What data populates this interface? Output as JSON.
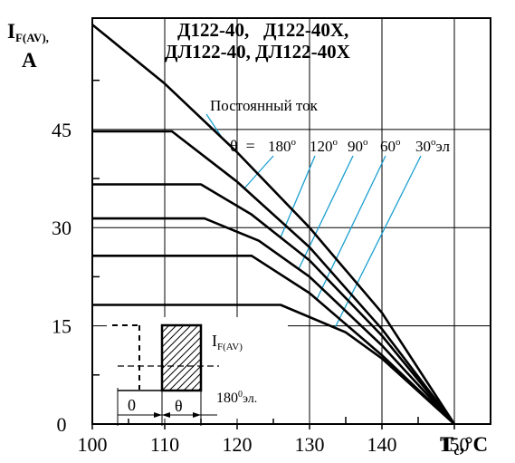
{
  "chart_data": {
    "type": "line",
    "title_lines": [
      "Д122-40,   Д122-40Х,",
      "ДЛ122-40, ДЛ122-40Х"
    ],
    "ylabel": {
      "main": "I",
      "sub": "F(AV),",
      "unit": "A"
    },
    "xlabel": {
      "main": "T",
      "sub": "c",
      "unit": ",°C"
    },
    "xlim": [
      100,
      155
    ],
    "ylim": [
      0,
      62
    ],
    "x_ticks": [
      "100",
      "110",
      "120",
      "130",
      "140",
      "150"
    ],
    "y_ticks": [
      "0",
      "15",
      "30",
      "45"
    ],
    "grid": true,
    "series": [
      {
        "name": "Постоянный ток",
        "points": [
          [
            100,
            61
          ],
          [
            110,
            52
          ],
          [
            120,
            41.5
          ],
          [
            130,
            30
          ],
          [
            140,
            17
          ],
          [
            150,
            0
          ]
        ]
      },
      {
        "name": "180",
        "points": [
          [
            100,
            44.7
          ],
          [
            111,
            44.7
          ],
          [
            120,
            37
          ],
          [
            130,
            27
          ],
          [
            140,
            14.5
          ],
          [
            150,
            0
          ]
        ]
      },
      {
        "name": "120",
        "points": [
          [
            100,
            36.6
          ],
          [
            115,
            36.6
          ],
          [
            122,
            32
          ],
          [
            130,
            25
          ],
          [
            140,
            13.5
          ],
          [
            150,
            0
          ]
        ]
      },
      {
        "name": "90",
        "points": [
          [
            100,
            31.4
          ],
          [
            115.5,
            31.4
          ],
          [
            123,
            28
          ],
          [
            130,
            22.5
          ],
          [
            140,
            12
          ],
          [
            150,
            0
          ]
        ]
      },
      {
        "name": "60",
        "points": [
          [
            100,
            25.7
          ],
          [
            122,
            25.7
          ],
          [
            130,
            20
          ],
          [
            140,
            10.5
          ],
          [
            150,
            0
          ]
        ]
      },
      {
        "name": "30",
        "points": [
          [
            100,
            18.2
          ],
          [
            126,
            18.2
          ],
          [
            135,
            14
          ],
          [
            140,
            10
          ],
          [
            150,
            0
          ]
        ]
      }
    ],
    "annotations": {
      "dc_label": "Постоянный ток",
      "theta_prefix": "θ  =",
      "angles": [
        "180",
        "120",
        "90",
        "60",
        "30"
      ],
      "degree_mark": "о",
      "angle_unit": "эл"
    },
    "leader_color": "#1a9fd0"
  },
  "inset": {
    "current_label": {
      "main": "I",
      "sub": "F(AV)"
    },
    "zero_label": "0",
    "theta_label": "θ",
    "period_label": "180",
    "period_sup": "0",
    "period_unit": "эл."
  }
}
